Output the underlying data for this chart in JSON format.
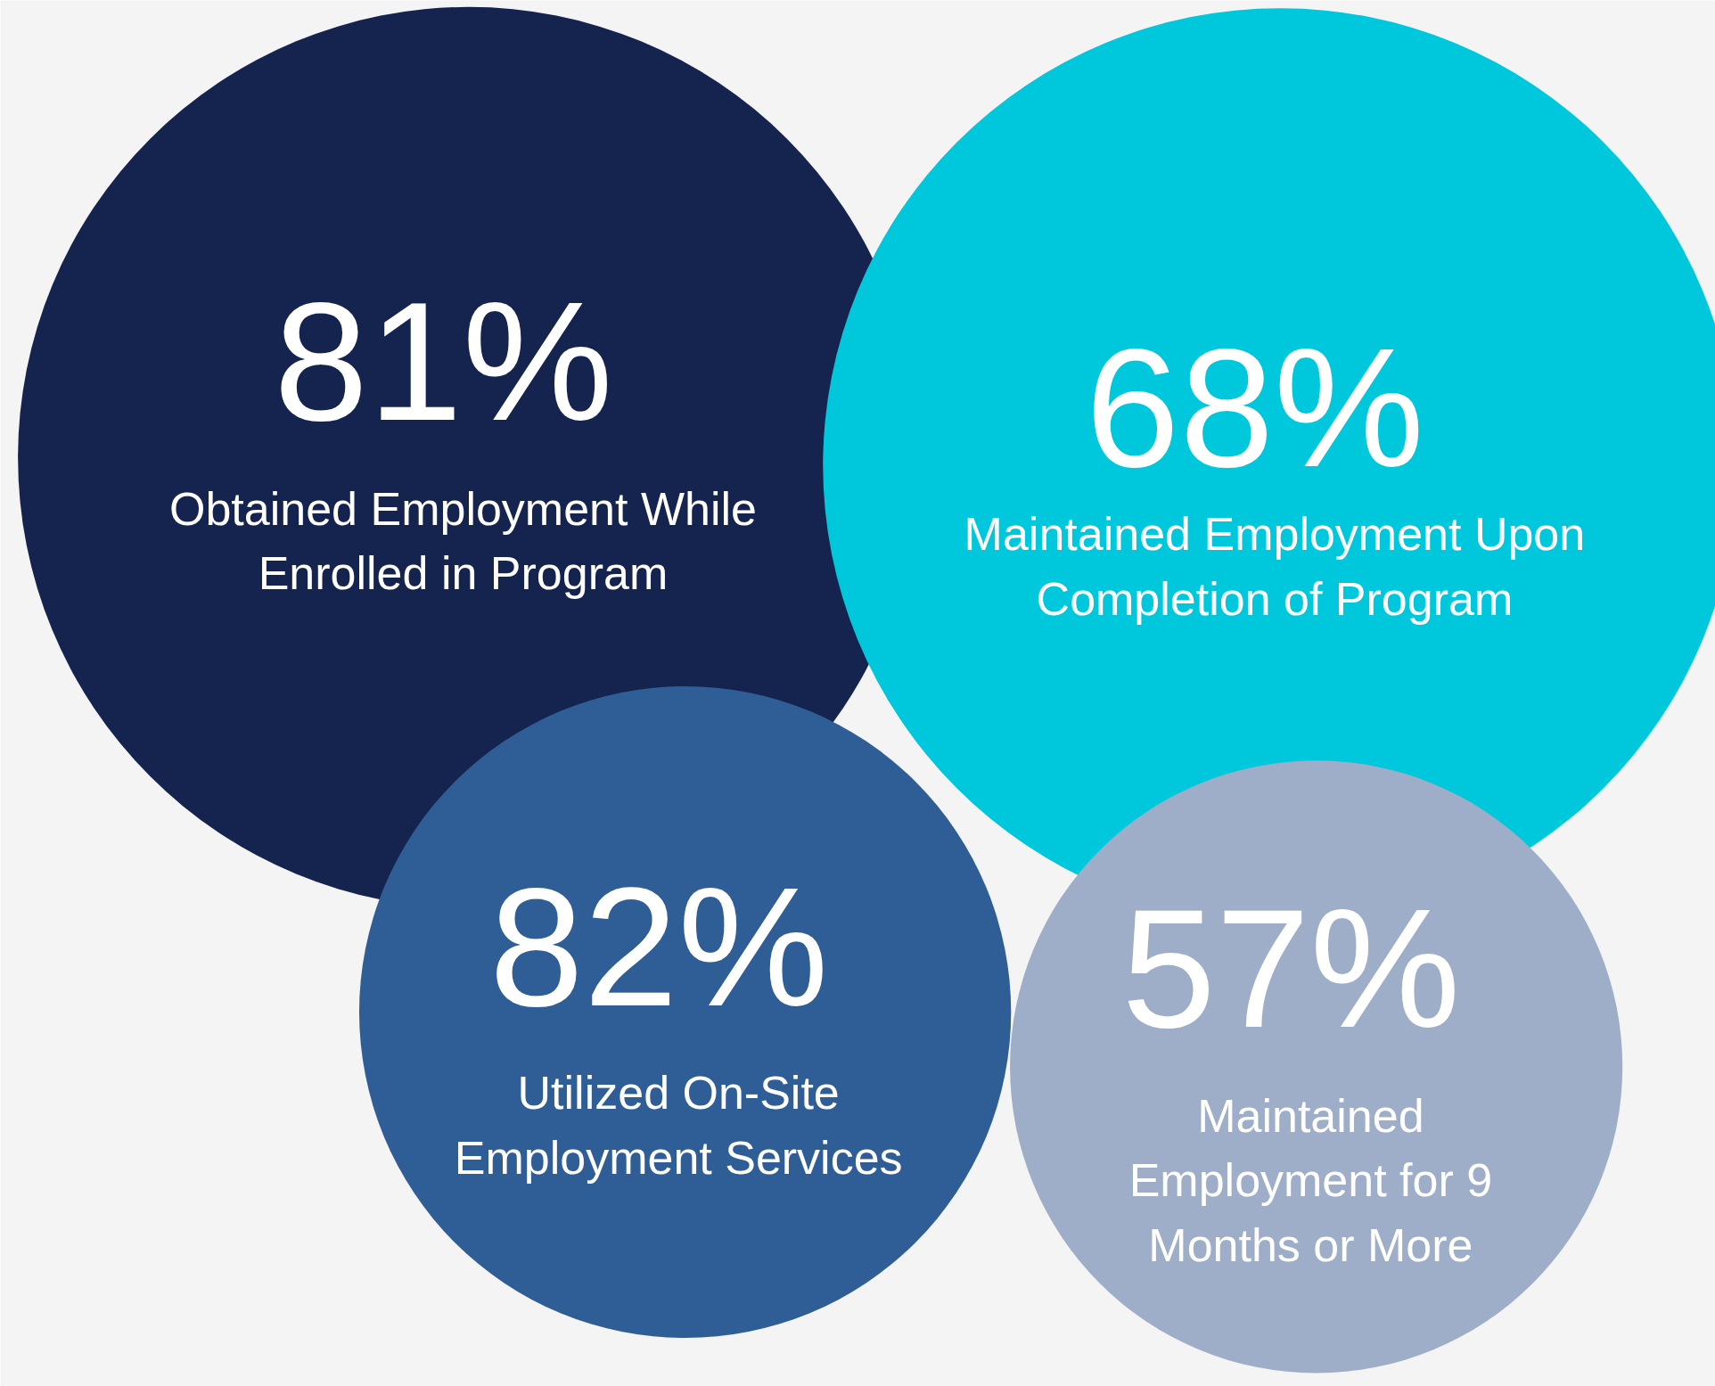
{
  "chart_data": {
    "type": "other",
    "categories": [
      "Obtained Employment While Enrolled in Program",
      "Maintained Employment Upon Completion of Program",
      "Utilized On-Site Employment Services",
      "Maintained Employment for 9 Months or More"
    ],
    "values": [
      81,
      68,
      82,
      57
    ],
    "value_labels": [
      "81%",
      "68%",
      "82%",
      "57%"
    ],
    "colors": [
      "#14244f",
      "#00c8dc",
      "#2f5e96",
      "#9eadc8"
    ]
  }
}
